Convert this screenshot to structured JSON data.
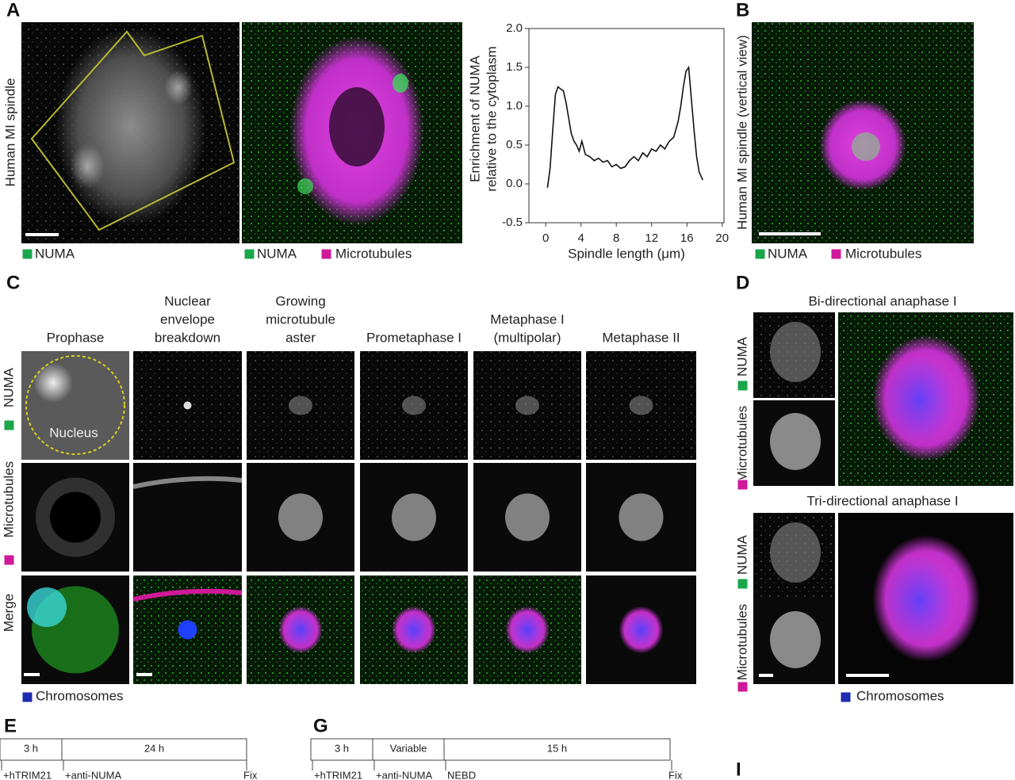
{
  "panel_labels": [
    "A",
    "B",
    "C",
    "D",
    "E",
    "G",
    "I"
  ],
  "panel_a": {
    "ylabel": "Human MI spindle",
    "legend": [
      "NUMA",
      "NUMA",
      "Microtubules"
    ]
  },
  "panel_b": {
    "ylabel": "Human MI spindle (vertical view)",
    "legend": [
      "NUMA",
      "Microtubules"
    ]
  },
  "panel_c": {
    "columns": [
      [
        "Prophase"
      ],
      [
        "Nuclear",
        "envelope",
        "breakdown"
      ],
      [
        "Growing",
        "microtubule",
        "aster"
      ],
      [
        "Prometaphase I"
      ],
      [
        "Metaphase I",
        "(multipolar)"
      ],
      [
        "Metaphase II"
      ]
    ],
    "rows": [
      "NUMA",
      "Microtubules",
      "Merge"
    ],
    "annotation": "Nucleus",
    "legend": "Chromosomes"
  },
  "panel_d": {
    "titles": [
      "Bi-directional anaphase I",
      "Tri-directional anaphase I"
    ],
    "rows": [
      "NUMA",
      "Microtubules",
      "NUMA",
      "Microtubules"
    ],
    "legend": "Chromosomes"
  },
  "panel_e": {
    "segments": [
      "3 h",
      "24 h"
    ],
    "events": [
      "+hTRIM21",
      "+anti-NUMA",
      "Fix"
    ]
  },
  "panel_g": {
    "segments": [
      "3 h",
      "Variable",
      "15 h"
    ],
    "events": [
      "+hTRIM21",
      "+anti-NUMA",
      "NEBD",
      "Fix"
    ]
  },
  "chart_data": {
    "type": "line",
    "ylabel": [
      "Enrichment of NUMA",
      "relative to the cytoplasm"
    ],
    "xlabel": "Spindle length (μm)",
    "x": [
      0.2,
      0.5,
      0.8,
      1.1,
      1.4,
      1.7,
      2.0,
      2.3,
      2.6,
      2.9,
      3.2,
      3.5,
      3.8,
      4.1,
      4.5,
      5,
      5.5,
      6,
      6.5,
      7,
      7.5,
      8,
      8.5,
      9,
      9.5,
      10,
      10.5,
      11,
      11.5,
      12,
      12.5,
      13,
      13.5,
      14,
      14.5,
      15,
      15.3,
      15.6,
      15.9,
      16.2,
      16.5,
      16.8,
      17.1,
      17.4,
      17.8
    ],
    "y": [
      -0.05,
      0.2,
      0.7,
      1.15,
      1.25,
      1.22,
      1.2,
      1.05,
      0.85,
      0.65,
      0.55,
      0.5,
      0.42,
      0.55,
      0.38,
      0.35,
      0.3,
      0.33,
      0.28,
      0.3,
      0.22,
      0.25,
      0.2,
      0.22,
      0.3,
      0.35,
      0.3,
      0.4,
      0.35,
      0.45,
      0.42,
      0.5,
      0.45,
      0.55,
      0.6,
      0.8,
      1.0,
      1.25,
      1.45,
      1.5,
      1.1,
      0.7,
      0.35,
      0.15,
      0.05
    ],
    "color": "#111111",
    "xlim": [
      -1.9,
      20.2
    ],
    "ylim": [
      -0.5,
      2.0
    ],
    "xticks": [
      0,
      4,
      8,
      12,
      16,
      20
    ],
    "yticks": [
      -0.5,
      {
        "value": 0,
        "label": "0.0"
      },
      0.5,
      {
        "value": 1,
        "label": "1.0"
      },
      1.5,
      {
        "value": 2,
        "label": "2.0"
      }
    ]
  }
}
